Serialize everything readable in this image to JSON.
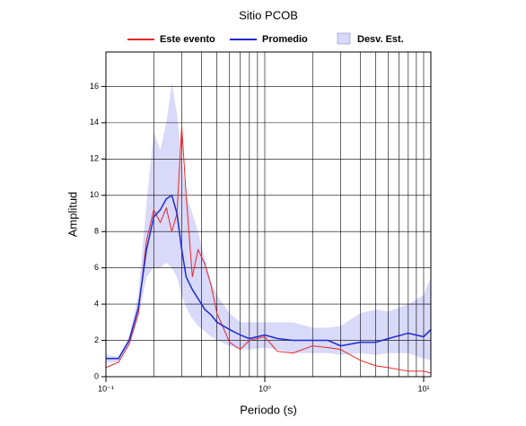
{
  "chart_data": {
    "type": "line",
    "title": "Sitio PCOB",
    "xlabel": "Periodo (s)",
    "ylabel": "Amplitud",
    "xscale": "log",
    "grid": true,
    "xlim": [
      0.1,
      11.1
    ],
    "ylim": [
      0,
      17.9
    ],
    "xticks": [
      {
        "value": 0.1,
        "label": "10⁻¹"
      },
      {
        "value": 1,
        "label": "10⁰"
      },
      {
        "value": 10,
        "label": "10¹"
      }
    ],
    "xgrid": [
      0.2,
      0.3,
      0.4,
      0.5,
      0.6,
      0.7,
      0.8,
      0.9,
      2,
      3,
      4,
      5,
      6,
      7,
      8,
      9
    ],
    "yticks": [
      0,
      2,
      4,
      6,
      8,
      10,
      12,
      14,
      16
    ],
    "x": [
      0.1,
      0.12,
      0.14,
      0.16,
      0.18,
      0.2,
      0.22,
      0.24,
      0.26,
      0.28,
      0.3,
      0.32,
      0.35,
      0.38,
      0.42,
      0.46,
      0.5,
      0.6,
      0.7,
      0.8,
      1,
      1.2,
      1.5,
      2,
      2.5,
      3,
      4,
      5,
      6,
      8,
      10,
      11.1
    ],
    "series": [
      {
        "name": "Este evento",
        "color": "#e8262a",
        "values": [
          0.5,
          0.8,
          1.8,
          3.5,
          7.5,
          9.2,
          8.5,
          9.3,
          8.0,
          9.0,
          13.8,
          10.0,
          5.5,
          7.0,
          6.2,
          5.0,
          3.5,
          1.9,
          1.5,
          2.0,
          2.2,
          1.4,
          1.3,
          1.7,
          1.6,
          1.5,
          0.9,
          0.6,
          0.5,
          0.3,
          0.3,
          0.2
        ]
      },
      {
        "name": "Promedio",
        "color": "#1a2ad0",
        "values": [
          1.0,
          1.0,
          2.0,
          3.8,
          7.0,
          8.8,
          9.2,
          9.8,
          10.0,
          9.0,
          7.0,
          5.5,
          4.8,
          4.3,
          3.7,
          3.4,
          3.0,
          2.6,
          2.3,
          2.1,
          2.3,
          2.1,
          2.0,
          2.0,
          2.0,
          1.7,
          1.9,
          1.9,
          2.1,
          2.4,
          2.2,
          2.6
        ]
      },
      {
        "name": "Desv. Est.",
        "color": "#d9d9f9",
        "lower": [
          0.8,
          0.8,
          1.7,
          3.2,
          5.5,
          6.0,
          6.0,
          6.3,
          6.0,
          5.5,
          4.5,
          3.8,
          3.2,
          2.8,
          2.5,
          2.2,
          2.0,
          1.7,
          1.5,
          1.5,
          1.6,
          1.5,
          1.3,
          1.3,
          1.3,
          1.2,
          1.3,
          1.2,
          1.3,
          1.3,
          1.0,
          0.9
        ],
        "upper": [
          1.2,
          1.1,
          2.2,
          4.5,
          9.5,
          13.5,
          12.5,
          14.0,
          16.2,
          14.5,
          12.0,
          10.0,
          9.0,
          8.0,
          6.5,
          5.2,
          4.5,
          3.5,
          3.0,
          3.0,
          3.0,
          3.0,
          3.0,
          2.7,
          2.7,
          2.8,
          3.5,
          3.7,
          3.6,
          4.0,
          4.5,
          5.5
        ]
      }
    ]
  }
}
